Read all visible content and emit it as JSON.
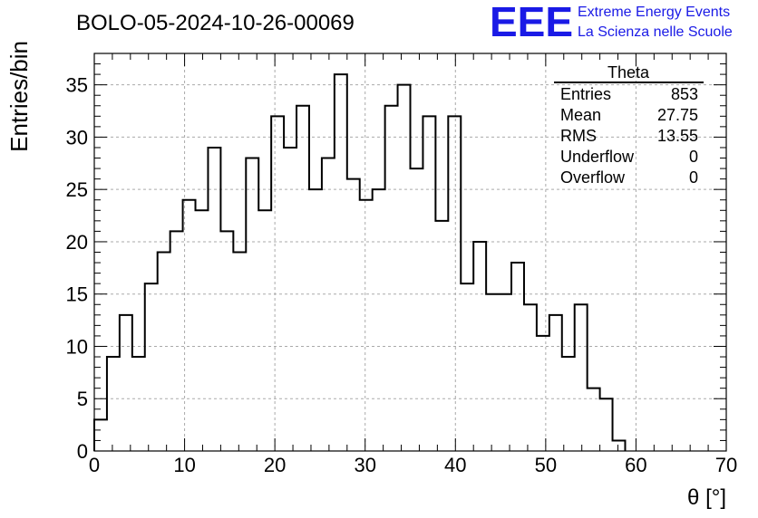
{
  "header": {
    "run_title": "BOLO-05-2024-10-26-00069",
    "logo_text": "EEE",
    "org_line1": "Extreme Energy Events",
    "org_line2": "La Scienza nelle Scuole"
  },
  "stats_box": {
    "title": "Theta",
    "rows": [
      {
        "label": "Entries",
        "value": "853"
      },
      {
        "label": "Mean",
        "value": "27.75"
      },
      {
        "label": "RMS",
        "value": "13.55"
      },
      {
        "label": "Underflow",
        "value": "0"
      },
      {
        "label": "Overflow",
        "value": "0"
      }
    ]
  },
  "chart_data": {
    "type": "bar",
    "style": "step-histogram",
    "xlabel": "θ [°]",
    "ylabel": "Entries/bin",
    "xlim": [
      0,
      70
    ],
    "ylim": [
      0,
      38
    ],
    "grid": true,
    "bin_width": 1.4,
    "x_ticks": [
      0,
      10,
      20,
      30,
      40,
      50,
      60,
      70
    ],
    "y_ticks": [
      0,
      5,
      10,
      15,
      20,
      25,
      30,
      35
    ],
    "bin_edges": [
      0,
      1.4,
      2.8,
      4.2,
      5.6,
      7.0,
      8.4,
      9.8,
      11.2,
      12.6,
      14.0,
      15.4,
      16.8,
      18.2,
      19.6,
      21.0,
      22.4,
      23.8,
      25.2,
      26.6,
      28.0,
      29.4,
      30.8,
      32.2,
      33.6,
      35.0,
      36.4,
      37.8,
      39.2,
      40.6,
      42.0,
      43.4,
      44.8,
      46.2,
      47.6,
      49.0,
      50.4,
      51.8,
      53.2,
      54.6,
      56.0,
      57.4,
      58.8
    ],
    "values": [
      3,
      9,
      13,
      9,
      16,
      19,
      21,
      24,
      23,
      29,
      21,
      19,
      28,
      23,
      32,
      29,
      33,
      25,
      28,
      36,
      26,
      24,
      25,
      33,
      35,
      27,
      32,
      22,
      32,
      16,
      20,
      15,
      15,
      18,
      14,
      11,
      13,
      9,
      14,
      6,
      5,
      1
    ]
  }
}
